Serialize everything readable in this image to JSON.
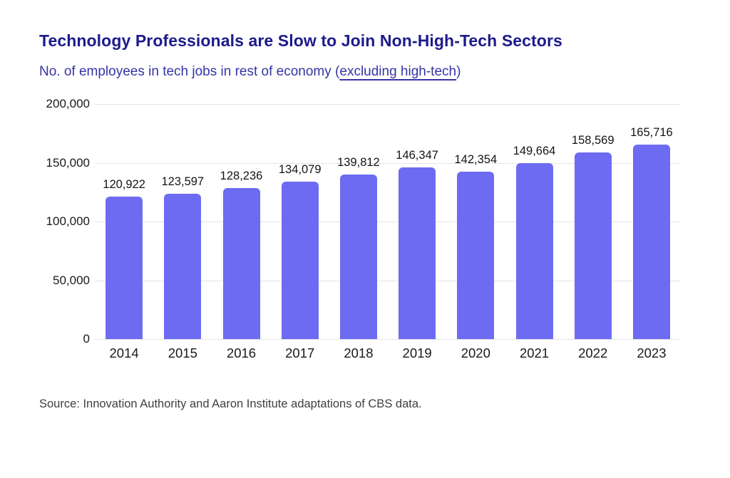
{
  "header": {
    "title": "Technology Professionals are Slow to Join Non-High-Tech Sectors",
    "subtitle_prefix": "No. of employees in tech jobs in rest of economy (",
    "subtitle_link": "excluding high-tech",
    "subtitle_suffix": ")"
  },
  "chart_data": {
    "type": "bar",
    "title": "Technology Professionals are Slow to Join Non-High-Tech Sectors",
    "subtitle": "No. of employees in tech jobs in rest of economy (excluding high-tech)",
    "categories": [
      "2014",
      "2015",
      "2016",
      "2017",
      "2018",
      "2019",
      "2020",
      "2021",
      "2022",
      "2023"
    ],
    "values": [
      120922,
      123597,
      128236,
      134079,
      139812,
      146347,
      142354,
      149664,
      158569,
      165716
    ],
    "value_labels": [
      "120,922",
      "123,597",
      "128,236",
      "134,079",
      "139,812",
      "146,347",
      "142,354",
      "149,664",
      "158,569",
      "165,716"
    ],
    "y_ticks": [
      "200,000",
      "150,000",
      "100,000",
      "50,000",
      "0"
    ],
    "ylim": [
      0,
      200000
    ],
    "xlabel": "",
    "ylabel": "",
    "grid": true,
    "legend_position": "none",
    "bar_color": "#6d6bf2"
  },
  "colors": {
    "background": "#ffffff",
    "title": "#1d1a8c",
    "subtitle": "#3534a6",
    "axis_text": "#1a1a1a",
    "value_label": "#141414",
    "gridline": "#e4e4e4",
    "source_text": "#3f3f3f"
  },
  "footer": {
    "source": "Source: Innovation Authority and Aaron Institute adaptations of CBS data."
  }
}
